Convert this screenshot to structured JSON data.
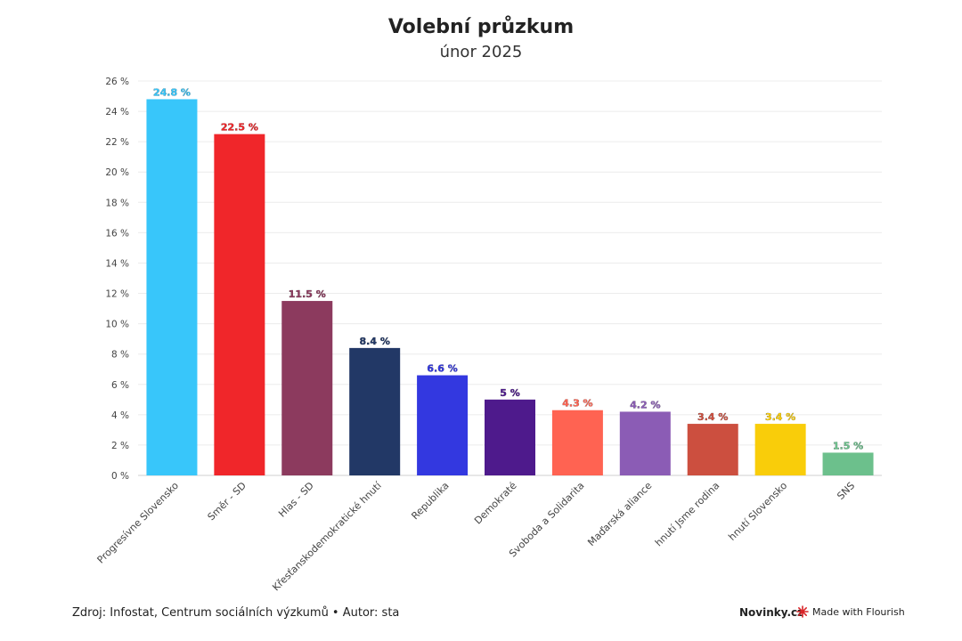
{
  "header": {
    "title": "Volební průzkum",
    "subtitle": "únor 2025"
  },
  "chart_data": {
    "type": "bar",
    "title": "Volební průzkum",
    "subtitle": "únor 2025",
    "xlabel": "",
    "ylabel": "",
    "ylim": [
      0,
      26
    ],
    "ytick_step": 2,
    "ytick_suffix": " %",
    "grid": true,
    "categories": [
      "Progresívne Slovensko",
      "Směr - SD",
      "Hlas - SD",
      "Křesťanskodemokratické hnutí",
      "Republika",
      "Demokraté",
      "Svoboda a Solidarita",
      "Maďarská aliance",
      "hnutí Jsme rodina",
      "hnutí Slovensko",
      "SNS"
    ],
    "values": [
      24.8,
      22.5,
      11.5,
      8.4,
      6.6,
      5,
      4.3,
      4.2,
      3.4,
      3.4,
      1.5
    ],
    "value_labels": [
      "24.8 %",
      "22.5 %",
      "11.5 %",
      "8.4 %",
      "6.6 %",
      "5 %",
      "4.3 %",
      "4.2 %",
      "3.4 %",
      "3.4 %",
      "1.5 %"
    ],
    "colors": [
      "#38c6fa",
      "#f0262a",
      "#8c3a5e",
      "#223866",
      "#3338e0",
      "#4e1a8c",
      "#ff6352",
      "#8b5cb5",
      "#cc4f3f",
      "#f9cd0a",
      "#6cc08c"
    ]
  },
  "footer": {
    "source": "Zdroj: Infostat, Centrum sociálních výzkumů • Autor: sta",
    "brand": "Novinky.cz",
    "flourish": "Made with Flourish"
  }
}
